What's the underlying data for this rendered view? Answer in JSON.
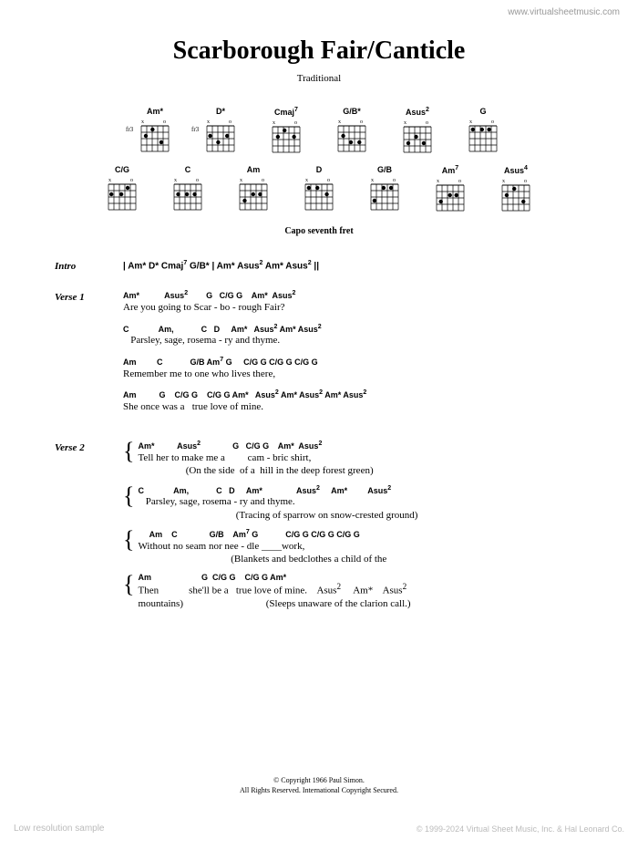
{
  "watermark_url": "www.virtualsheetmusic.com",
  "title": "Scarborough Fair/Canticle",
  "subtitle": "Traditional",
  "chord_diagrams": {
    "row1": [
      {
        "name": "Am*",
        "fret": "fr3"
      },
      {
        "name": "D*",
        "fret": "fr3"
      },
      {
        "name": "Cmaj7",
        "fret": ""
      },
      {
        "name": "G/B*",
        "fret": ""
      },
      {
        "name": "Asus2",
        "fret": ""
      },
      {
        "name": "G",
        "fret": ""
      }
    ],
    "row2": [
      {
        "name": "C/G",
        "fret": ""
      },
      {
        "name": "C",
        "fret": ""
      },
      {
        "name": "Am",
        "fret": ""
      },
      {
        "name": "D",
        "fret": ""
      },
      {
        "name": "G/B",
        "fret": ""
      },
      {
        "name": "Am7",
        "fret": ""
      },
      {
        "name": "Asus4",
        "fret": ""
      }
    ]
  },
  "capo": "Capo seventh fret",
  "sections": {
    "intro": {
      "label": "Intro",
      "chords": "| Am* D* Cmaj7 G/B* | Am* Asus2 Am* Asus2 ||"
    },
    "verse1": {
      "label": "Verse 1",
      "lines": [
        {
          "chords": "Am*           Asus2        G   C/G G    Am*  Asus2",
          "lyrics": "Are you going to Scar - bo - rough Fair?"
        },
        {
          "chords": "C             Am,            C   D     Am*   Asus2 Am* Asus2",
          "lyrics": "   Parsley, sage, rosema - ry and thyme."
        },
        {
          "chords": "Am         C            G/B Am7 G     C/G G C/G G C/G G",
          "lyrics": "Remember me to one who lives there,"
        },
        {
          "chords": "Am          G    C/G G    C/G G Am*   Asus2 Am* Asus2 Am* Asus2",
          "lyrics": "She once was a   true love of mine."
        }
      ]
    },
    "verse2": {
      "label": "Verse 2",
      "groups": [
        {
          "chords": "Am*          Asus2              G   C/G G    Am*  Asus2",
          "lyrics1": "Tell her to make me a         cam - bric shirt,",
          "lyrics2": "                   (On the side  of a  hill in the deep forest green)"
        },
        {
          "chords": "C             Am,            C   D     Am*               Asus2     Am*         Asus2",
          "lyrics1": "   Parsley, sage, rosema - ry and thyme.",
          "lyrics2": "                                       (Tracing of sparrow on snow-crested ground)"
        },
        {
          "chords": "     Am    C              G/B    Am7 G            C/G G C/G G C/G G",
          "lyrics1": "Without no seam nor nee - dle ____work,",
          "lyrics2": "                                     (Blankets and bedclothes a child of the"
        },
        {
          "chords": "Am                      G  C/G G    C/G G Am*",
          "lyrics1": "Then            she'll be a   true love of mine.    Asus2     Am*    Asus2",
          "lyrics2": "mountains)                                 (Sleeps unaware of the clarion call.)"
        }
      ]
    }
  },
  "copyright": {
    "line1": "© Copyright 1966 Paul Simon.",
    "line2": "All Rights Reserved. International Copyright Secured."
  },
  "watermark_bottom": "Low resolution sample",
  "watermark_right": "© 1999-2024 Virtual Sheet Music, Inc. & Hal Leonard Co."
}
